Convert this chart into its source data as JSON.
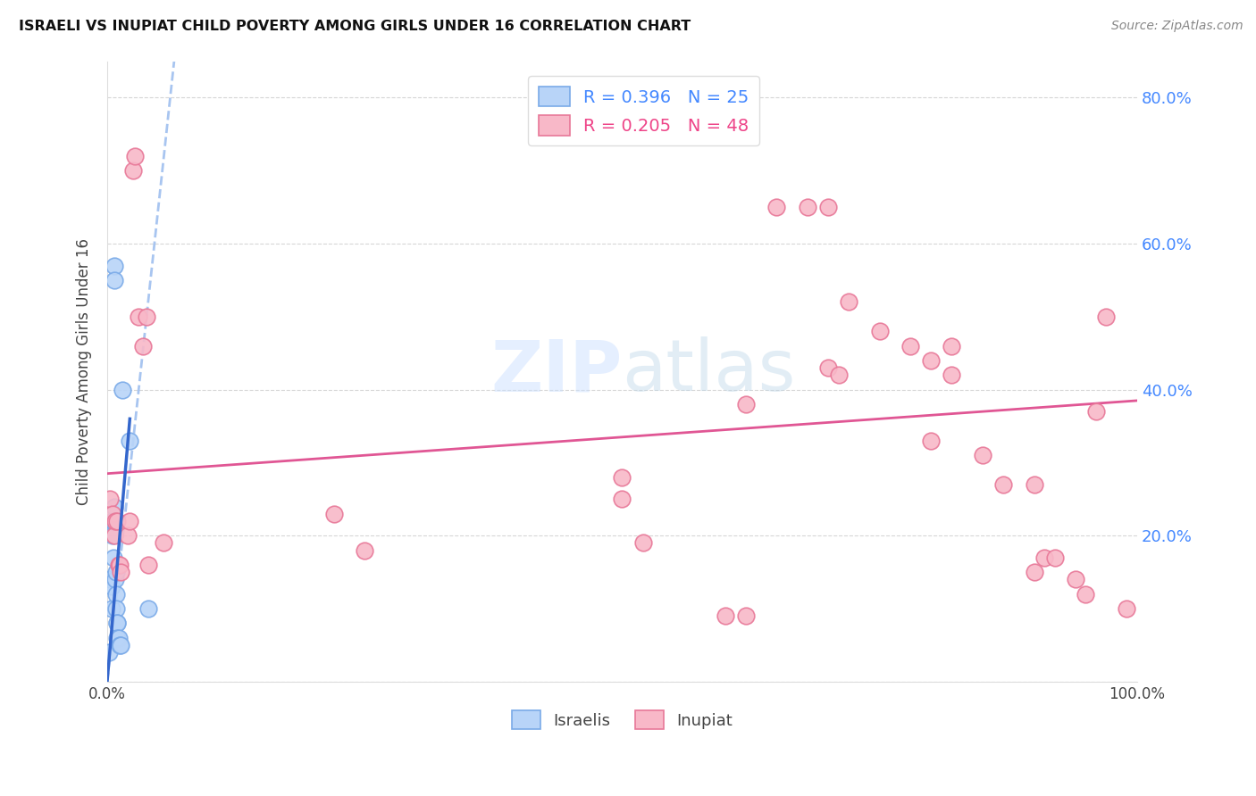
{
  "title": "ISRAELI VS INUPIAT CHILD POVERTY AMONG GIRLS UNDER 16 CORRELATION CHART",
  "source": "Source: ZipAtlas.com",
  "ylabel": "Child Poverty Among Girls Under 16",
  "xlabel": "",
  "xlim": [
    0,
    1.0
  ],
  "ylim": [
    0,
    0.85
  ],
  "background_color": "#ffffff",
  "grid_color": "#cccccc",
  "israelis_color": "#b8d4f8",
  "israelis_edge_color": "#7aaae8",
  "inupiat_color": "#f8b8c8",
  "inupiat_edge_color": "#e87898",
  "trend_israelis_color": "#3366cc",
  "trend_israelis_dashed_color": "#99bbee",
  "trend_inupiat_color": "#dd4488",
  "R_israelis": 0.396,
  "N_israelis": 25,
  "R_inupiat": 0.205,
  "N_inupiat": 48,
  "israelis_x": [
    0.002,
    0.003,
    0.004,
    0.004,
    0.005,
    0.005,
    0.006,
    0.006,
    0.007,
    0.007,
    0.007,
    0.008,
    0.008,
    0.009,
    0.009,
    0.009,
    0.01,
    0.01,
    0.01,
    0.011,
    0.012,
    0.013,
    0.015,
    0.022,
    0.04
  ],
  "israelis_y": [
    0.04,
    0.14,
    0.13,
    0.1,
    0.22,
    0.2,
    0.22,
    0.17,
    0.57,
    0.55,
    0.24,
    0.22,
    0.14,
    0.15,
    0.12,
    0.1,
    0.08,
    0.08,
    0.06,
    0.06,
    0.05,
    0.05,
    0.4,
    0.33,
    0.1
  ],
  "inupiat_x": [
    0.003,
    0.005,
    0.007,
    0.008,
    0.01,
    0.011,
    0.012,
    0.013,
    0.02,
    0.022,
    0.025,
    0.027,
    0.03,
    0.035,
    0.038,
    0.04,
    0.055,
    0.22,
    0.25,
    0.5,
    0.52,
    0.6,
    0.62,
    0.65,
    0.7,
    0.72,
    0.75,
    0.78,
    0.8,
    0.82,
    0.85,
    0.87,
    0.9,
    0.91,
    0.92,
    0.94,
    0.95,
    0.96,
    0.7,
    0.71,
    0.62,
    0.9,
    0.68,
    0.5,
    0.8,
    0.82,
    0.97,
    0.99
  ],
  "inupiat_y": [
    0.25,
    0.23,
    0.2,
    0.22,
    0.22,
    0.16,
    0.16,
    0.15,
    0.2,
    0.22,
    0.7,
    0.72,
    0.5,
    0.46,
    0.5,
    0.16,
    0.19,
    0.23,
    0.18,
    0.25,
    0.19,
    0.09,
    0.09,
    0.65,
    0.65,
    0.52,
    0.48,
    0.46,
    0.44,
    0.42,
    0.31,
    0.27,
    0.27,
    0.17,
    0.17,
    0.14,
    0.12,
    0.37,
    0.43,
    0.42,
    0.38,
    0.15,
    0.65,
    0.28,
    0.33,
    0.46,
    0.5,
    0.1
  ],
  "inupiat_trend_x0": 0.0,
  "inupiat_trend_y0": 0.285,
  "inupiat_trend_x1": 1.0,
  "inupiat_trend_y1": 0.385,
  "israelis_trend_solid_x0": 0.0,
  "israelis_trend_solid_y0": 0.0,
  "israelis_trend_solid_x1": 0.022,
  "israelis_trend_solid_y1": 0.36,
  "israelis_trend_dashed_x0": 0.0,
  "israelis_trend_dashed_y0": 0.0,
  "israelis_trend_dashed_x1": 0.065,
  "israelis_trend_dashed_y1": 0.85
}
